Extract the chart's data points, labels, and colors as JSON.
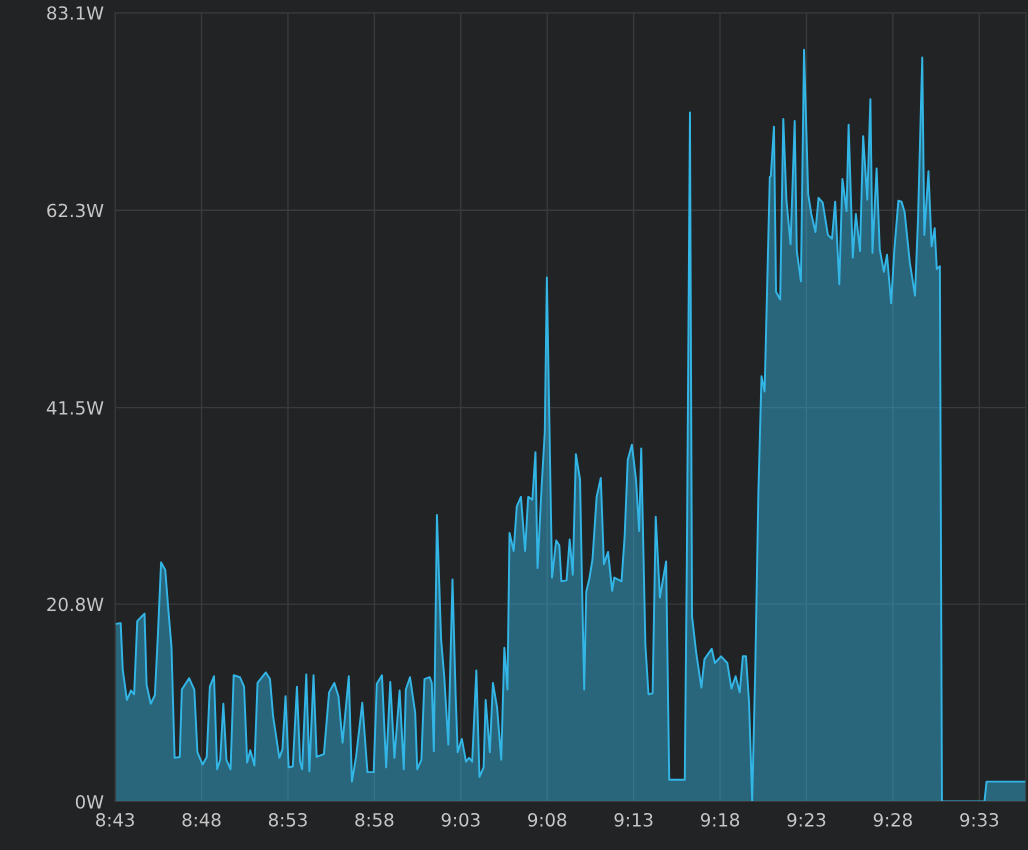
{
  "chart_data": {
    "type": "area",
    "x": [
      8.717,
      8.722,
      8.724,
      8.728,
      8.732,
      8.735,
      8.738,
      8.745,
      8.747,
      8.751,
      8.755,
      8.758,
      8.761,
      8.765,
      8.768,
      8.771,
      8.774,
      8.779,
      8.781,
      8.788,
      8.793,
      8.796,
      8.801,
      8.805,
      8.808,
      8.812,
      8.815,
      8.818,
      8.821,
      8.824,
      8.828,
      8.831,
      8.837,
      8.841,
      8.844,
      8.847,
      8.851,
      8.854,
      8.862,
      8.866,
      8.869,
      8.875,
      8.878,
      8.881,
      8.884,
      8.888,
      8.892,
      8.895,
      8.897,
      8.901,
      8.904,
      8.908,
      8.911,
      8.918,
      8.923,
      8.928,
      8.932,
      8.936,
      8.942,
      8.945,
      8.949,
      8.955,
      8.96,
      8.966,
      8.969,
      8.974,
      8.978,
      8.982,
      8.986,
      8.991,
      8.995,
      8.997,
      9.001,
      9.006,
      9.008,
      9.012,
      9.015,
      9.02,
      9.022,
      9.024,
      9.027,
      9.031,
      9.034,
      9.038,
      9.042,
      9.045,
      9.047,
      9.051,
      9.055,
      9.058,
      9.061,
      9.065,
      9.068,
      9.072,
      9.074,
      9.078,
      9.081,
      9.085,
      9.089,
      9.092,
      9.095,
      9.097,
      9.101,
      9.104,
      9.108,
      9.112,
      9.115,
      9.119,
      9.122,
      9.124,
      9.128,
      9.131,
      9.133,
      9.138,
      9.142,
      9.145,
      9.147,
      9.152,
      9.155,
      9.158,
      9.161,
      9.165,
      9.167,
      9.169,
      9.171,
      9.174,
      9.177,
      9.181,
      9.185,
      9.188,
      9.192,
      9.196,
      9.198,
      9.205,
      9.208,
      9.211,
      9.215,
      9.219,
      9.222,
      9.224,
      9.228,
      9.231,
      9.235,
      9.238,
      9.242,
      9.245,
      9.248,
      9.251,
      9.266,
      9.268,
      9.271,
      9.273,
      9.277,
      9.282,
      9.285,
      9.292,
      9.295,
      9.301,
      9.307,
      9.311,
      9.315,
      9.319,
      9.322,
      9.325,
      9.328,
      9.331,
      9.334,
      9.337,
      9.34,
      9.343,
      9.348,
      9.349,
      9.352,
      9.354,
      9.358,
      9.361,
      9.364,
      9.368,
      9.372,
      9.374,
      9.378,
      9.381,
      9.385,
      9.388,
      9.392,
      9.395,
      9.399,
      9.404,
      9.408,
      9.411,
      9.415,
      9.418,
      9.422,
      9.424,
      9.428,
      9.431,
      9.435,
      9.438,
      9.442,
      9.445,
      9.447,
      9.451,
      9.454,
      9.458,
      9.461,
      9.465,
      9.468,
      9.472,
      9.475,
      9.478,
      9.483,
      9.488,
      9.491,
      9.495,
      9.497,
      9.501,
      9.504,
      9.507,
      9.509,
      9.512,
      9.514,
      9.555,
      9.557,
      9.595
    ],
    "series": [
      {
        "color": "#33b5e5",
        "values": [
          18.7,
          18.8,
          13.9,
          10.7,
          11.7,
          11.3,
          19.0,
          19.8,
          12.3,
          10.3,
          11.2,
          17.8,
          25.2,
          24.4,
          20.2,
          16.3,
          4.6,
          4.7,
          11.8,
          13.0,
          11.8,
          5.2,
          3.9,
          4.7,
          12.1,
          13.2,
          3.4,
          4.4,
          10.3,
          4.4,
          3.4,
          13.3,
          13.1,
          12.1,
          4.1,
          5.4,
          3.8,
          12.5,
          13.6,
          12.9,
          9.0,
          4.6,
          5.5,
          11.1,
          3.6,
          3.7,
          12.1,
          4.2,
          3.4,
          13.4,
          3.2,
          13.3,
          4.7,
          5.0,
          11.5,
          12.5,
          11.1,
          6.2,
          13.2,
          2.1,
          4.7,
          10.4,
          3.1,
          3.1,
          12.4,
          13.3,
          3.6,
          12.6,
          4.6,
          11.7,
          3.4,
          11.8,
          13.1,
          9.4,
          3.4,
          4.4,
          12.9,
          13.1,
          12.5,
          5.3,
          30.2,
          17.1,
          13.2,
          6.0,
          23.4,
          11.3,
          5.2,
          6.6,
          4.2,
          4.6,
          4.2,
          13.8,
          2.6,
          3.6,
          10.7,
          5.2,
          12.5,
          9.9,
          4.4,
          16.2,
          11.8,
          28.3,
          26.4,
          31.1,
          32.1,
          26.4,
          32.1,
          31.8,
          36.8,
          24.6,
          33.3,
          38.9,
          55.2,
          23.6,
          27.5,
          27.0,
          23.2,
          23.3,
          27.6,
          23.9,
          36.6,
          33.9,
          22.3,
          11.8,
          22.1,
          23.5,
          25.5,
          32.1,
          34.1,
          25.0,
          26.3,
          22.2,
          23.6,
          23.2,
          27.9,
          36.0,
          37.6,
          33.9,
          28.5,
          37.2,
          16.5,
          11.3,
          11.4,
          30.0,
          21.5,
          23.4,
          25.3,
          2.3,
          2.3,
          25.3,
          72.6,
          19.5,
          15.7,
          12.0,
          15.0,
          16.1,
          14.6,
          15.3,
          14.6,
          11.9,
          13.2,
          11.5,
          15.3,
          15.3,
          10.4,
          0,
          14.1,
          32.6,
          44.8,
          43.2,
          65.8,
          65.9,
          71.1,
          53.7,
          52.9,
          71.9,
          63.4,
          58.7,
          71.7,
          58.0,
          54.8,
          79.2,
          64.0,
          61.9,
          60.0,
          63.6,
          63.1,
          59.7,
          59.3,
          63.2,
          54.5,
          65.6,
          62.2,
          71.3,
          57.3,
          61.9,
          58.0,
          70.1,
          63.4,
          74.0,
          57.8,
          66.7,
          58.2,
          55.8,
          57.6,
          52.5,
          58.0,
          63.3,
          63.2,
          62.1,
          56.8,
          53.3,
          61.6,
          78.4,
          59.7,
          66.4,
          58.5,
          60.4,
          56.1,
          56.4,
          0,
          0,
          2.1,
          2.1
        ]
      }
    ],
    "xlim": [
      8.71667,
      9.595
    ],
    "xticks": [
      {
        "value": 8.71667,
        "label": "8:43"
      },
      {
        "value": 8.8,
        "label": "8:48"
      },
      {
        "value": 8.88333,
        "label": "8:53"
      },
      {
        "value": 8.96667,
        "label": "8:58"
      },
      {
        "value": 9.05,
        "label": "9:03"
      },
      {
        "value": 9.13333,
        "label": "9:08"
      },
      {
        "value": 9.21667,
        "label": "9:13"
      },
      {
        "value": 9.3,
        "label": "9:18"
      },
      {
        "value": 9.38333,
        "label": "9:23"
      },
      {
        "value": 9.46667,
        "label": "9:28"
      },
      {
        "value": 9.55,
        "label": "9:33"
      }
    ],
    "ylim": [
      0,
      83.1
    ],
    "yticks": [
      {
        "value": 0,
        "label": "0W"
      },
      {
        "value": 20.8,
        "label": "20.8W"
      },
      {
        "value": 41.5,
        "label": "41.5W"
      },
      {
        "value": 62.3,
        "label": "62.3W"
      },
      {
        "value": 83.1,
        "label": "83.1W"
      }
    ],
    "grid": true
  }
}
